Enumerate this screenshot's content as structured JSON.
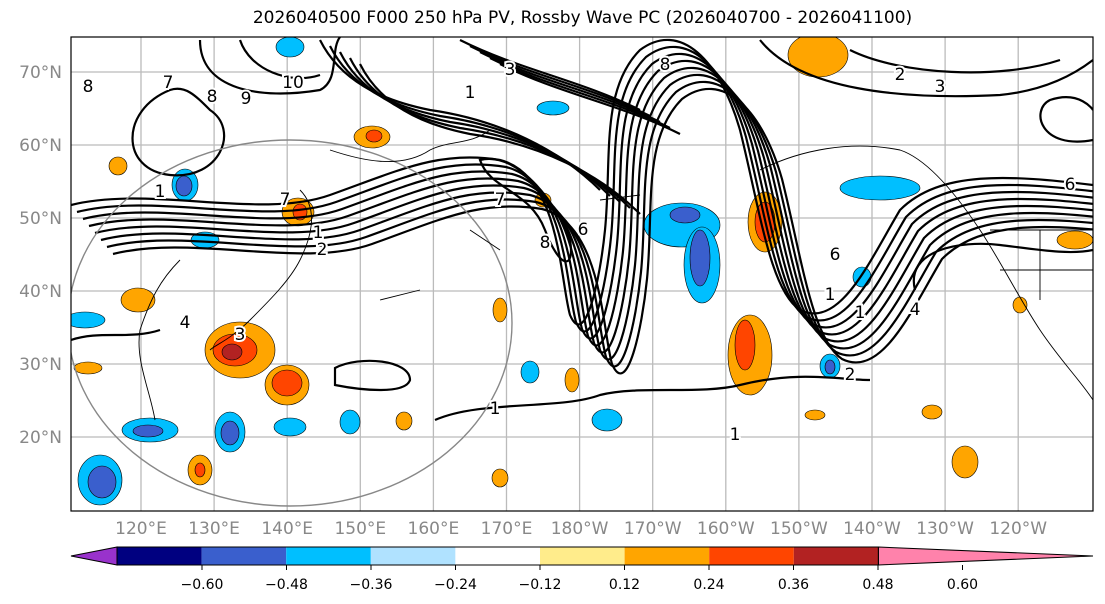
{
  "title": "2026040500 F000 250 hPa PV, Rossby Wave PC (2026040700 - 2026041100)",
  "lat_labels": [
    "70°N",
    "60°N",
    "50°N",
    "40°N",
    "30°N",
    "20°N"
  ],
  "lon_labels": [
    "120°E",
    "130°E",
    "140°E",
    "150°E",
    "160°E",
    "170°E",
    "180°W",
    "170°W",
    "160°W",
    "150°W",
    "140°W",
    "130°W",
    "120°W"
  ],
  "colorbar": {
    "ticks": [
      "−0.60",
      "−0.48",
      "−0.36",
      "−0.24",
      "−0.12",
      "0.12",
      "0.24",
      "0.36",
      "0.48",
      "0.60"
    ],
    "colors": [
      "#9932CC",
      "#000080",
      "#3A5FCD",
      "#00BFFF",
      "#B0E2FF",
      "#FFFFFF",
      "#FFEC8B",
      "#FFA500",
      "#FF4500",
      "#B22222",
      "#FF82AB"
    ]
  },
  "contour_labels": [
    "8",
    "7",
    "8",
    "9",
    "10",
    "1",
    "8",
    "3",
    "2",
    "3",
    "1",
    "7",
    "8",
    "6",
    "7",
    "2",
    "1",
    "4",
    "3",
    "6",
    "1",
    "1",
    "2",
    "1",
    "1",
    "6",
    "4"
  ]
}
